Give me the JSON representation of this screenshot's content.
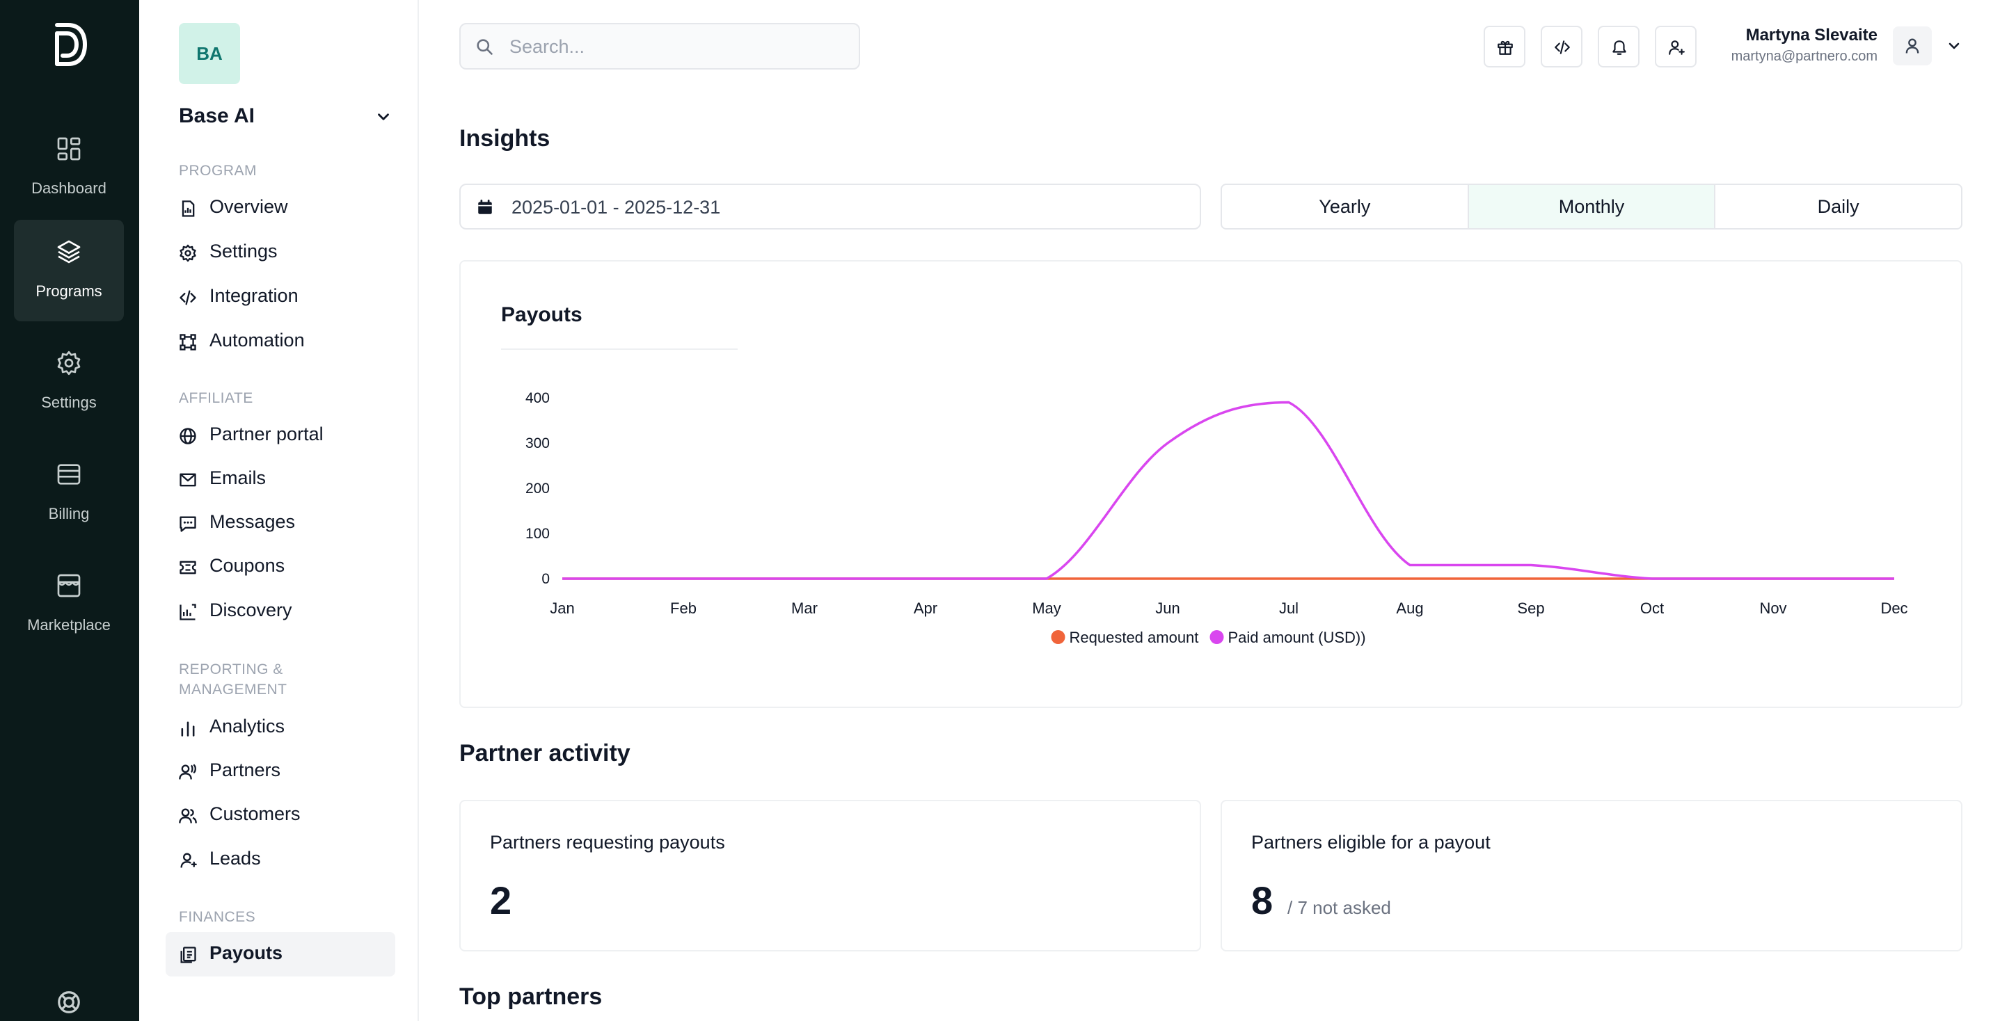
{
  "rail": {
    "items": [
      {
        "label": "Dashboard",
        "icon": "dashboard-icon"
      },
      {
        "label": "Programs",
        "icon": "layers-icon",
        "active": true
      },
      {
        "label": "Settings",
        "icon": "gear-icon"
      },
      {
        "label": "Billing",
        "icon": "billing-icon"
      },
      {
        "label": "Marketplace",
        "icon": "marketplace-icon"
      }
    ]
  },
  "workspace": {
    "initials": "BA",
    "name": "Base AI"
  },
  "sidebar": {
    "sections": {
      "program": "PROGRAM",
      "affiliate": "AFFILIATE",
      "reporting_line1": "REPORTING &",
      "reporting_line2": "MANAGEMENT",
      "finances": "FINANCES"
    },
    "items": {
      "overview": "Overview",
      "settings": "Settings",
      "integration": "Integration",
      "automation": "Automation",
      "partner_portal": "Partner portal",
      "emails": "Emails",
      "messages": "Messages",
      "coupons": "Coupons",
      "discovery": "Discovery",
      "analytics": "Analytics",
      "partners": "Partners",
      "customers": "Customers",
      "leads": "Leads",
      "payouts": "Payouts"
    }
  },
  "header": {
    "search_placeholder": "Search...",
    "user_name": "Martyna Slevaite",
    "user_email": "martyna@partnero.com"
  },
  "insights": {
    "title": "Insights",
    "date_range": "2025-01-01 - 2025-12-31",
    "periods": [
      "Yearly",
      "Monthly",
      "Daily"
    ],
    "active_period": "Monthly"
  },
  "colors": {
    "requested": "#f0643a",
    "paid": "#d946ef",
    "rail_bg": "#0b1a1a"
  },
  "chart_data": {
    "type": "line",
    "title": "Payouts",
    "categories": [
      "Jan",
      "Feb",
      "Mar",
      "Apr",
      "May",
      "Jun",
      "Jul",
      "Aug",
      "Sep",
      "Oct",
      "Nov",
      "Dec"
    ],
    "ylim": [
      0,
      400
    ],
    "yticks": [
      "400",
      "300",
      "200",
      "100",
      "0"
    ],
    "series": [
      {
        "name": "Requested amount",
        "values": [
          0,
          0,
          0,
          0,
          0,
          0,
          0,
          0,
          0,
          0,
          0,
          0
        ]
      },
      {
        "name": "Paid amount (USD))",
        "values": [
          0,
          0,
          0,
          0,
          0,
          300,
          390,
          30,
          30,
          0,
          0,
          0
        ]
      }
    ],
    "legend": "bottom"
  },
  "partner_activity": {
    "title": "Partner activity",
    "requesting_label": "Partners requesting payouts",
    "requesting_value": "2",
    "eligible_label": "Partners eligible for a payout",
    "eligible_value": "8",
    "eligible_sub": "/ 7 not asked"
  },
  "top_partners": {
    "title": "Top partners"
  }
}
